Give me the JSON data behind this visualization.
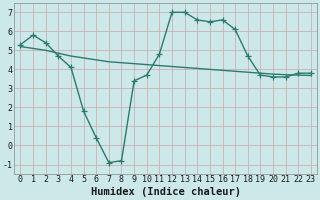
{
  "line1_x": [
    0,
    1,
    2,
    3,
    4,
    5,
    6,
    7,
    8,
    9,
    10,
    11,
    12,
    13,
    14,
    15,
    16,
    17,
    18,
    19,
    20,
    21,
    22,
    23
  ],
  "line1_y": [
    5.3,
    5.8,
    5.4,
    4.7,
    4.1,
    1.8,
    0.4,
    -0.9,
    -0.8,
    3.4,
    3.7,
    4.8,
    7.0,
    7.0,
    6.6,
    6.5,
    6.6,
    6.1,
    4.7,
    3.7,
    3.6,
    3.6,
    3.8,
    3.8
  ],
  "line2_x": [
    0,
    1,
    2,
    3,
    4,
    5,
    6,
    7,
    8,
    9,
    10,
    11,
    12,
    13,
    14,
    15,
    16,
    17,
    18,
    19,
    20,
    21,
    22,
    23
  ],
  "line2_y": [
    5.2,
    5.1,
    5.0,
    4.85,
    4.7,
    4.6,
    4.5,
    4.4,
    4.35,
    4.3,
    4.25,
    4.2,
    4.15,
    4.1,
    4.05,
    4.0,
    3.95,
    3.9,
    3.85,
    3.8,
    3.75,
    3.72,
    3.7,
    3.68
  ],
  "color": "#2d7a6e",
  "bg_color": "#cce8e8",
  "grid_color": "#c0d8d8",
  "xlabel": "Humidex (Indice chaleur)",
  "xlim": [
    -0.5,
    23.5
  ],
  "ylim": [
    -1.5,
    7.5
  ],
  "yticks": [
    -1,
    0,
    1,
    2,
    3,
    4,
    5,
    6,
    7
  ],
  "xticks": [
    0,
    1,
    2,
    3,
    4,
    5,
    6,
    7,
    8,
    9,
    10,
    11,
    12,
    13,
    14,
    15,
    16,
    17,
    18,
    19,
    20,
    21,
    22,
    23
  ],
  "marker": "+",
  "markersize": 4,
  "linewidth": 1.0,
  "xlabel_fontsize": 7.5,
  "tick_fontsize": 6.0
}
